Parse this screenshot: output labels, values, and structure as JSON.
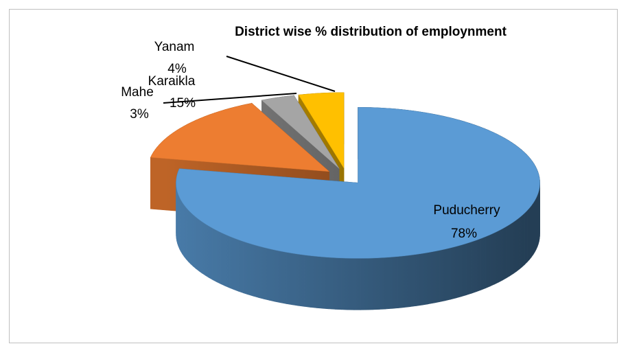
{
  "chart_data": {
    "type": "pie",
    "title": "District wise % distribution of employnment",
    "categories": [
      "Puducherry",
      "Karaikla",
      "Mahe",
      "Yanam"
    ],
    "values": [
      78,
      15,
      3,
      4
    ],
    "value_labels": [
      "78%",
      "15%",
      "3%",
      "4%"
    ],
    "colors": [
      "#5b9bd5",
      "#ed7d31",
      "#a5a5a5",
      "#ffc000"
    ]
  }
}
